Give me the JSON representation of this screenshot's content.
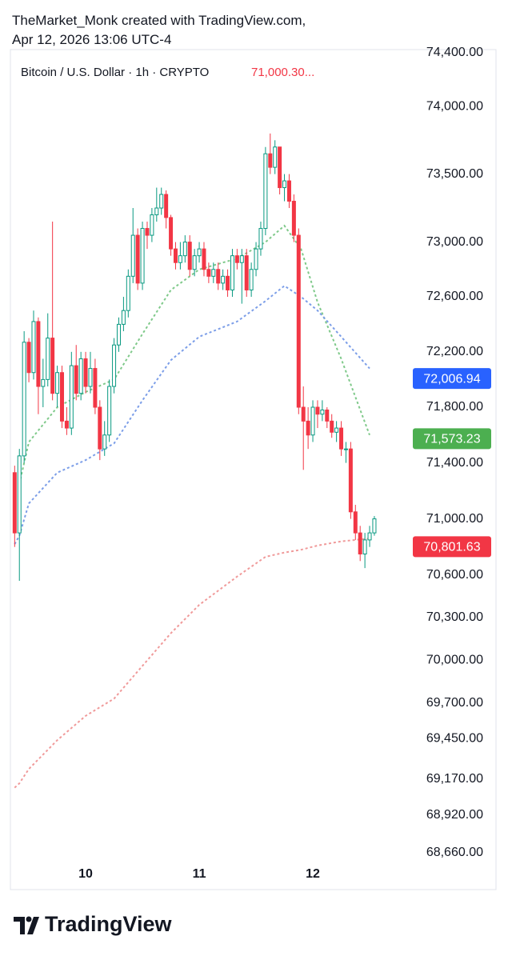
{
  "header": {
    "line1": "TheMarket_Monk created with TradingView.com,",
    "line2": "Apr 12, 2026 13:06 UTC-4"
  },
  "chart_data": {
    "type": "candlestick",
    "title": "Bitcoin / U.S. Dollar · 1h · CRYPTO",
    "last_price": "71,000.30...",
    "log_scale": true,
    "up_color": "#089981",
    "down_color": "#f23645",
    "x": [
      -15,
      -14,
      -13,
      -12,
      -11,
      -10,
      -9,
      -8,
      -7,
      -6,
      -5,
      -4,
      -3,
      -2,
      -1,
      0,
      1,
      2,
      3,
      4,
      5,
      6,
      7,
      8,
      9,
      10,
      11,
      12,
      13,
      14,
      15,
      16,
      17,
      18,
      19,
      20,
      21,
      22,
      23,
      24,
      25,
      26,
      27,
      28,
      29,
      30,
      31,
      32,
      33,
      34,
      35,
      36,
      37,
      38,
      39,
      40,
      41,
      42,
      43,
      44,
      45,
      46,
      47,
      48,
      49,
      50,
      51,
      52,
      53,
      54,
      55,
      56,
      57,
      58,
      59,
      60,
      61
    ],
    "open": [
      71330,
      70900,
      71450,
      72270,
      72050,
      72420,
      71950,
      72000,
      72300,
      71900,
      72050,
      71700,
      71650,
      72100,
      71900,
      72150,
      71950,
      72080,
      71800,
      71500,
      71600,
      71950,
      72250,
      72400,
      72500,
      72750,
      73050,
      72700,
      73100,
      73050,
      73200,
      73250,
      73350,
      73180,
      72950,
      72850,
      72900,
      73000,
      72800,
      72900,
      72950,
      72800,
      72750,
      72800,
      72700,
      72750,
      72650,
      72900,
      72850,
      72900,
      72650,
      72800,
      72950,
      73100,
      73650,
      73550,
      73700,
      73400,
      73450,
      73300,
      73050,
      71800,
      71700,
      71600,
      71800,
      71750,
      71780,
      71700,
      71620,
      71650,
      71500,
      71500,
      71050,
      70900,
      70750,
      70850,
      70900
    ],
    "high": [
      71380,
      71500,
      72350,
      72300,
      72500,
      72450,
      72150,
      72480,
      73150,
      72100,
      72100,
      71800,
      72200,
      72250,
      72200,
      72200,
      72200,
      72150,
      71850,
      71700,
      72000,
      72300,
      72450,
      72600,
      72800,
      73250,
      73100,
      73150,
      73150,
      73250,
      73400,
      73400,
      73380,
      73200,
      73000,
      73000,
      73050,
      73050,
      72950,
      73000,
      73000,
      72850,
      72850,
      72850,
      72800,
      72800,
      72950,
      72950,
      72950,
      72950,
      72850,
      73000,
      73150,
      73700,
      73800,
      73750,
      73700,
      73500,
      73500,
      73350,
      73100,
      71950,
      71800,
      71850,
      71850,
      71850,
      71800,
      71750,
      71700,
      71700,
      71550,
      71550,
      71100,
      70950,
      70900,
      70950,
      71020
    ],
    "low": [
      70800,
      70560,
      71400,
      71980,
      72000,
      71750,
      71800,
      71950,
      71850,
      71800,
      71650,
      71600,
      71600,
      71850,
      71850,
      71900,
      71900,
      71750,
      71420,
      71450,
      71550,
      71900,
      72200,
      72350,
      72450,
      72700,
      72650,
      72650,
      72950,
      73000,
      73150,
      73200,
      73100,
      72900,
      72800,
      72800,
      72850,
      72750,
      72750,
      72850,
      72750,
      72700,
      72700,
      72650,
      72650,
      72600,
      72600,
      72800,
      72550,
      72600,
      72600,
      72750,
      72900,
      73050,
      73500,
      73500,
      73350,
      73300,
      73250,
      73000,
      71750,
      71350,
      71500,
      71550,
      71650,
      71700,
      71650,
      71580,
      71550,
      71450,
      71400,
      71000,
      70850,
      70700,
      70650,
      70800,
      70880
    ],
    "close": [
      70900,
      71450,
      72270,
      72050,
      72420,
      71950,
      72000,
      72300,
      71900,
      72050,
      71700,
      71650,
      72100,
      71900,
      72150,
      71950,
      72080,
      71800,
      71500,
      71600,
      71950,
      72250,
      72400,
      72500,
      72750,
      73050,
      72700,
      73100,
      73050,
      73200,
      73250,
      73350,
      73180,
      72950,
      72850,
      72900,
      73000,
      72800,
      72900,
      72950,
      72800,
      72750,
      72800,
      72700,
      72750,
      72650,
      72900,
      72850,
      72900,
      72650,
      72800,
      72950,
      73100,
      73650,
      73550,
      73700,
      73400,
      73450,
      73300,
      73050,
      71800,
      71700,
      71600,
      71800,
      71750,
      71780,
      71700,
      71620,
      71650,
      71500,
      71500,
      71050,
      70900,
      70750,
      70850,
      70900,
      71000
    ],
    "lines": [
      {
        "color": "#7fc98a",
        "x": [
          -14,
          -12,
          -6,
          0,
          6,
          12,
          18,
          24,
          32,
          38,
          42,
          45.5,
          49,
          54,
          60
        ],
        "values": [
          71250,
          71550,
          71800,
          71910,
          72000,
          72330,
          72650,
          72800,
          72880,
          73000,
          73120,
          72950,
          72560,
          72150,
          71600
        ],
        "last": {
          "value": 71573.23,
          "label": "71,573.23"
        },
        "tag_color": "#4caf50"
      },
      {
        "color": "#7c9ee8",
        "x": [
          -15,
          -14,
          -12,
          -6,
          0,
          6,
          12,
          18,
          24,
          32,
          38,
          42,
          45.5,
          49,
          54,
          60
        ],
        "values": [
          70820,
          70880,
          71110,
          71330,
          71420,
          71540,
          71850,
          72140,
          72310,
          72420,
          72570,
          72680,
          72600,
          72500,
          72310,
          72080
        ],
        "last": {
          "value": 72006.94,
          "label": "72,006.94"
        },
        "tag_color": "#2962ff"
      },
      {
        "color": "#f09a9a",
        "x": [
          -15,
          -14,
          -12,
          -6,
          0,
          6,
          12,
          18,
          24,
          32,
          38,
          42,
          45.5,
          49,
          54,
          60
        ],
        "values": [
          69110,
          69140,
          69240,
          69440,
          69610,
          69730,
          69960,
          70190,
          70390,
          70590,
          70730,
          70760,
          70780,
          70810,
          70840,
          70860
        ],
        "last": {
          "value": 70801.63,
          "label": "70,801.63"
        },
        "tag_color": "#f23645"
      }
    ],
    "xlim": [
      -15.9,
      86.7
    ],
    "xticks": [
      {
        "value": 0,
        "label": "10"
      },
      {
        "value": 24,
        "label": "11"
      },
      {
        "value": 48,
        "label": "12"
      }
    ],
    "ylim": [
      68610,
      74436
    ],
    "yticks": [
      {
        "value": 74400,
        "label": "74,400.00"
      },
      {
        "value": 74000,
        "label": "74,000.00"
      },
      {
        "value": 73500,
        "label": "73,500.00"
      },
      {
        "value": 73000,
        "label": "73,000.00"
      },
      {
        "value": 72600,
        "label": "72,600.00"
      },
      {
        "value": 72200,
        "label": "72,200.00"
      },
      {
        "value": 71800,
        "label": "71,800.00"
      },
      {
        "value": 71400,
        "label": "71,400.00"
      },
      {
        "value": 71000,
        "label": "71,000.00"
      },
      {
        "value": 70600,
        "label": "70,600.00"
      },
      {
        "value": 70300,
        "label": "70,300.00"
      },
      {
        "value": 70000,
        "label": "70,000.00"
      },
      {
        "value": 69700,
        "label": "69,700.00"
      },
      {
        "value": 69450,
        "label": "69,450.00"
      },
      {
        "value": 69170,
        "label": "69,170.00"
      },
      {
        "value": 68920,
        "label": "68,920.00"
      },
      {
        "value": 68660,
        "label": "68,660.00"
      }
    ]
  },
  "footer": {
    "brand": "TradingView"
  }
}
